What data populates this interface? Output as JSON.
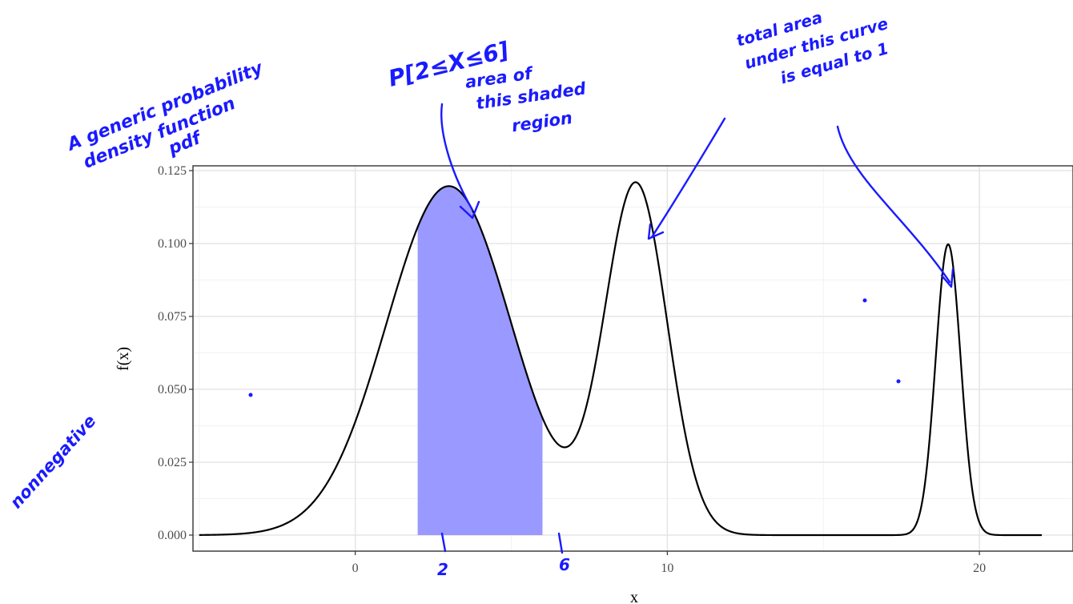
{
  "chart_data": {
    "type": "line",
    "xlabel": "x",
    "ylabel": "f(x)",
    "xlim": [
      -5.2,
      23
    ],
    "ylim": [
      0,
      0.125
    ],
    "x_ticks": [
      0,
      10,
      20
    ],
    "x_tick_labels": [
      "0",
      "10",
      "20"
    ],
    "y_ticks": [
      0,
      0.025,
      0.05,
      0.075,
      0.1,
      0.125
    ],
    "y_tick_labels": [
      "0.000",
      "0.025",
      "0.050",
      "0.075",
      "0.100",
      "0.125"
    ],
    "grid": true,
    "curve": {
      "components": [
        {
          "weight": 0.6,
          "mean": 3,
          "sd": 2
        },
        {
          "weight": 0.3,
          "mean": 9,
          "sd": 1
        },
        {
          "weight": 0.1,
          "mean": 19,
          "sd": 0.4
        }
      ],
      "x_range": [
        -5,
        22
      ]
    },
    "shaded_region": {
      "from": 2,
      "to": 6,
      "color": "#9999ff"
    },
    "curve_color": "#000000"
  },
  "annotations": {
    "title_note": [
      "A generic probability",
      "density function",
      "pdf"
    ],
    "prob_note": "P[2≤X≤6]",
    "area_note": [
      "area of",
      "this shaded",
      "region"
    ],
    "total_note": [
      "total area",
      "under this curve",
      "is equal to 1"
    ],
    "nonneg_note": "nonnegative",
    "bound_low": "2",
    "bound_high": "6",
    "ink_color": "#1a1aff"
  }
}
